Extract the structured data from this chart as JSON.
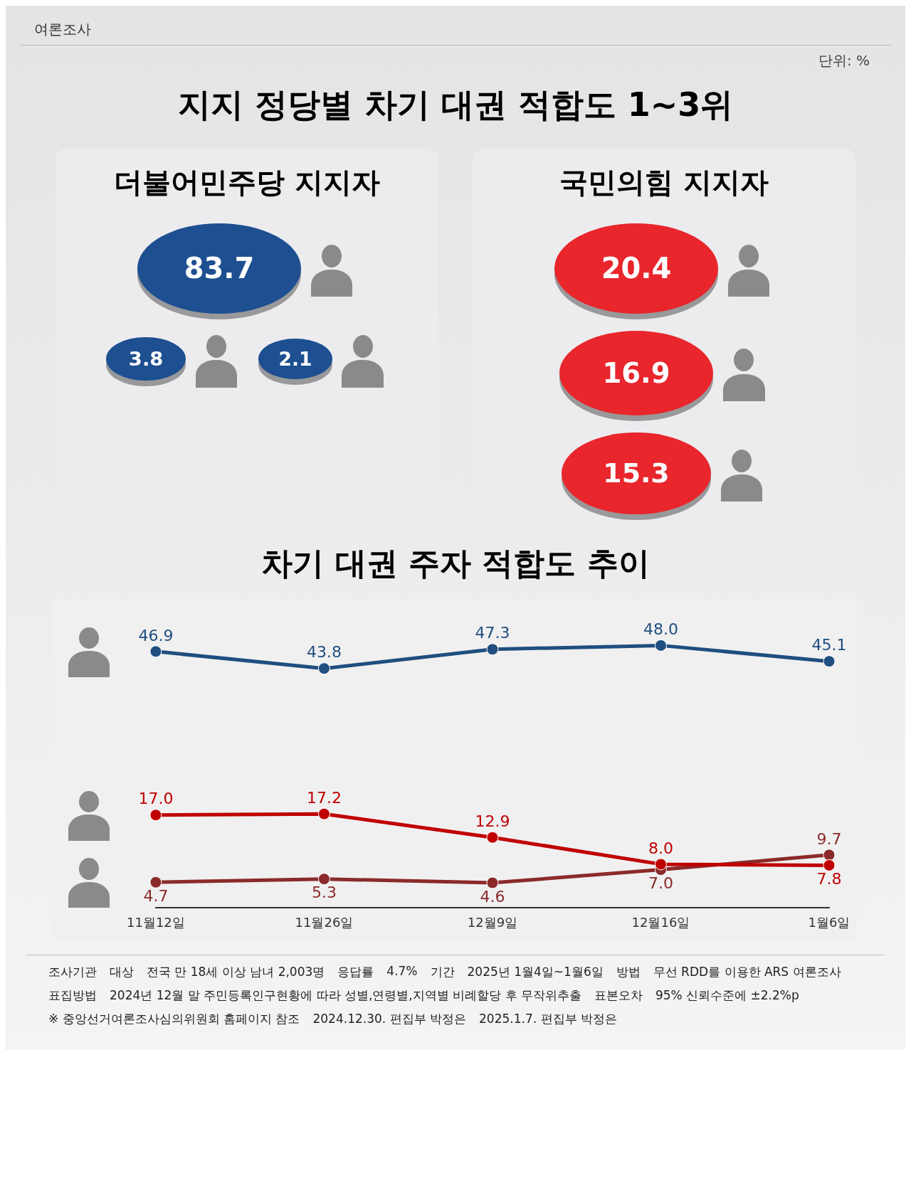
{
  "chart_data": [
    {
      "type": "other",
      "title": "지지 정당별 차기 대권  적합도 1~3위",
      "annotations": [
        "여론조사",
        "단위: %"
      ]
    },
    {
      "type": "other",
      "title": "더불어민주당 지지자",
      "categories": [
        null,
        null,
        null
      ],
      "values": [
        83.7,
        3.8,
        2.1
      ],
      "data_labels": true,
      "colors": [
        "#1d4f91",
        "#1d4f91",
        "#1d4f91"
      ]
    },
    {
      "type": "other",
      "title": "국민의힘 지지자",
      "categories": [
        null,
        null,
        null
      ],
      "values": [
        20.4,
        16.9,
        15.3
      ],
      "data_labels": true,
      "colors": [
        "#e8262c",
        "#e8262c",
        "#e8262c"
      ]
    },
    {
      "type": "line",
      "title": "차기 대권 주자 적합도 추이",
      "categories": [
        "11월12일",
        "11월26일",
        "12월9일",
        "12월16일",
        "1월6일"
      ],
      "marker": "circle",
      "series": [
        {
          "color": "#1f4e7f",
          "values": [
            46.9,
            43.8,
            47.3,
            48.0,
            45.1
          ],
          "value_labels": [
            "46.9",
            "43.8",
            "47.3",
            "48.0",
            "45.1"
          ]
        },
        {
          "color": "#c00000",
          "values": [
            17.0,
            17.2,
            12.9,
            8.0,
            7.8
          ],
          "value_labels": [
            "17.0",
            "17.2",
            "12.9",
            "8.0",
            "7.8"
          ]
        },
        {
          "color": "#8b2a2a",
          "values": [
            4.7,
            5.3,
            4.6,
            7.0,
            9.7
          ],
          "value_labels": [
            "4.7",
            "5.3",
            "4.6",
            "7.0",
            "9.7"
          ]
        }
      ]
    },
    {
      "type": "other",
      "annotations": [
        "조사기관",
        "대상",
        "전국 만 18세 이상 남녀 2,003명",
        "응답률",
        "4.7%",
        "기간",
        "2025년 1월4일~1월6일",
        "방법",
        "무선 RDD를 이용한 ARS 여론조사",
        "표집방법",
        "2024년 12월 말 주민등록인구현황에 따라 성별,연령별,지역별 비례할당 후 무작위추출",
        "표본오차",
        "95% 신뢰수준에 ±2.2%p",
        "※ 중앙선거여론조사심의위원회 홈페이지 참조",
        "2024.12.30. 편집부 박정은",
        "2025.1.7. 편집부 박정은"
      ]
    }
  ]
}
